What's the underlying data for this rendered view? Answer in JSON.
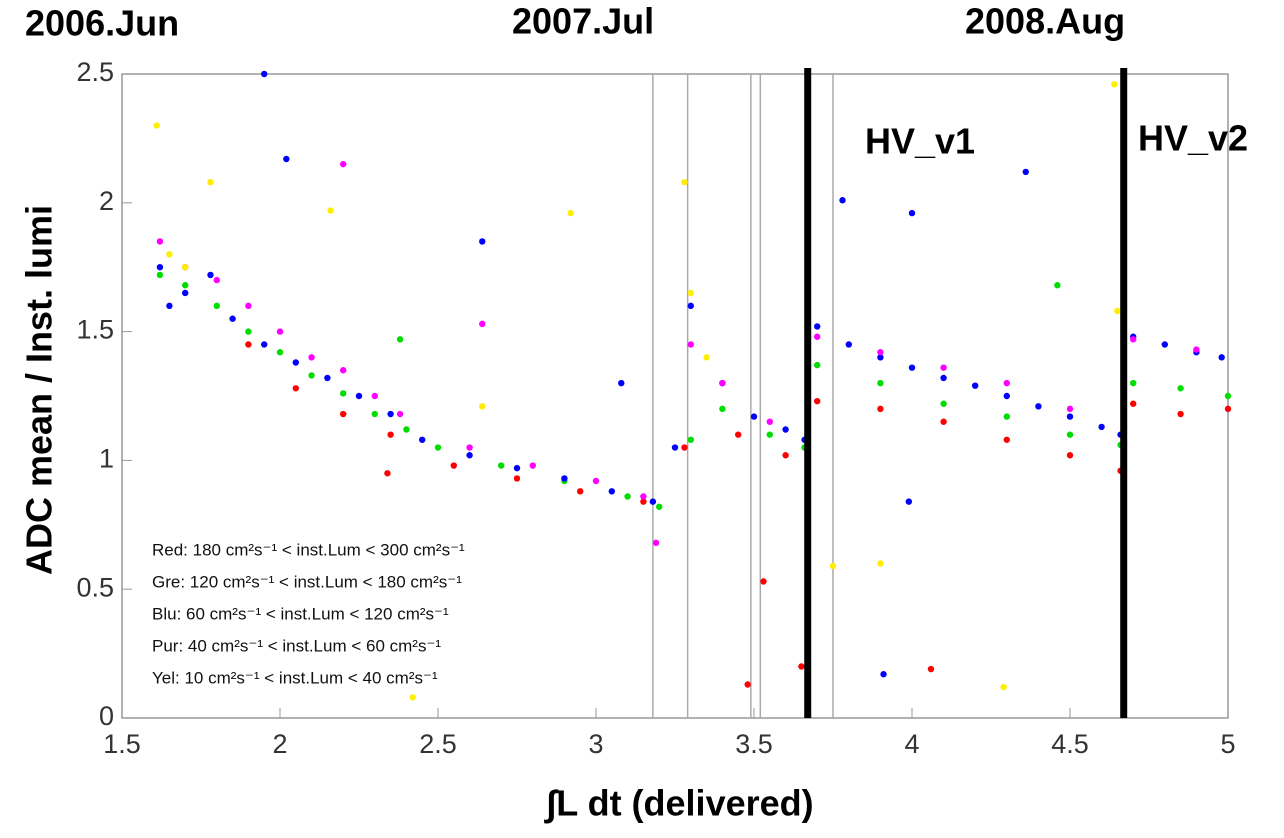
{
  "chart_data": {
    "type": "scatter",
    "x_label": "∫L dt  (delivered)",
    "y_label": "ADC mean / Inst. lumi",
    "annotations": [
      "2006.Jun",
      "2007.Jul",
      "2008.Aug",
      "HV_v1",
      "HV_v2"
    ],
    "xlim": [
      1.5,
      5
    ],
    "ylim": [
      0,
      2.5
    ],
    "xticks": [
      1.5,
      2,
      2.5,
      3,
      3.5,
      4,
      4.5,
      5
    ],
    "yticks": [
      0,
      0.5,
      1,
      1.5,
      2,
      2.5
    ],
    "vlines": [
      3.18,
      3.29,
      3.49,
      3.52,
      3.75
    ],
    "thick_vlines": [
      3.67,
      4.67
    ],
    "series": [
      {
        "name": "Red:  180 cm²s⁻¹ <  inst.Lum < 300 cm²s⁻¹",
        "color": "#ff0000",
        "x": [
          1.9,
          2.05,
          2.2,
          2.35,
          2.55,
          2.75,
          2.95,
          3.15,
          3.28,
          3.45,
          3.6,
          3.7,
          3.9,
          4.1,
          4.3,
          4.5,
          4.66,
          4.7,
          4.85,
          5.0,
          3.48,
          3.53,
          3.65,
          4.06,
          4.67,
          2.34
        ],
        "values": [
          1.45,
          1.28,
          1.18,
          1.1,
          0.98,
          0.93,
          0.88,
          0.84,
          1.05,
          1.1,
          1.02,
          1.23,
          1.2,
          1.15,
          1.08,
          1.02,
          0.96,
          1.22,
          1.18,
          1.2,
          0.13,
          0.53,
          0.2,
          0.19,
          0.15,
          0.95
        ]
      },
      {
        "name": "Gre:  120 cm²s⁻¹ <  inst.Lum < 180 cm²s⁻¹",
        "color": "#00dd00",
        "x": [
          1.62,
          1.7,
          1.8,
          1.9,
          2.0,
          2.1,
          2.2,
          2.3,
          2.4,
          2.5,
          2.7,
          2.9,
          3.1,
          3.2,
          3.3,
          3.4,
          3.55,
          3.66,
          3.7,
          3.9,
          4.1,
          4.3,
          4.5,
          4.66,
          4.7,
          4.85,
          5.0,
          2.38,
          4.46,
          3.67
        ],
        "values": [
          1.72,
          1.68,
          1.6,
          1.5,
          1.42,
          1.33,
          1.26,
          1.18,
          1.12,
          1.05,
          0.98,
          0.92,
          0.86,
          0.82,
          1.08,
          1.2,
          1.1,
          1.05,
          1.37,
          1.3,
          1.22,
          1.17,
          1.1,
          1.06,
          1.3,
          1.28,
          1.25,
          1.47,
          1.68,
          0.13
        ]
      },
      {
        "name": "Blu:   60 cm²s⁻¹ <  inst.Lum < 120 cm²s⁻¹",
        "color": "#0000ff",
        "x": [
          1.62,
          1.65,
          1.7,
          1.78,
          1.85,
          1.95,
          2.05,
          2.15,
          2.25,
          2.35,
          2.45,
          2.6,
          2.75,
          2.9,
          3.05,
          3.18,
          3.25,
          3.3,
          3.4,
          3.5,
          3.6,
          3.66,
          3.7,
          3.8,
          3.9,
          4.0,
          4.1,
          4.2,
          4.3,
          4.4,
          4.5,
          4.6,
          4.66,
          4.7,
          4.8,
          4.9,
          4.98,
          1.95,
          2.02,
          2.64,
          3.08,
          3.78,
          4.0,
          4.36,
          3.91,
          3.99
        ],
        "values": [
          1.75,
          1.6,
          1.65,
          1.72,
          1.55,
          1.45,
          1.38,
          1.32,
          1.25,
          1.18,
          1.08,
          1.02,
          0.97,
          0.93,
          0.88,
          0.84,
          1.05,
          1.6,
          1.3,
          1.17,
          1.12,
          1.08,
          1.52,
          1.45,
          1.4,
          1.36,
          1.32,
          1.29,
          1.25,
          1.21,
          1.17,
          1.13,
          1.1,
          1.48,
          1.45,
          1.42,
          1.4,
          2.5,
          2.17,
          1.85,
          1.3,
          2.01,
          1.96,
          2.12,
          0.17,
          0.84
        ]
      },
      {
        "name": "Pur:   40 cm²s⁻¹ <  inst.Lum <  60 cm²s⁻¹",
        "color": "#ff00ff",
        "x": [
          1.62,
          1.7,
          1.8,
          1.9,
          2.0,
          2.1,
          2.2,
          2.3,
          2.38,
          2.6,
          2.8,
          3.0,
          3.15,
          3.3,
          3.4,
          3.55,
          3.7,
          3.9,
          4.1,
          4.3,
          4.5,
          4.7,
          4.9,
          2.2,
          2.64,
          3.19
        ],
        "values": [
          1.85,
          1.75,
          1.7,
          1.6,
          1.5,
          1.4,
          1.35,
          1.25,
          1.18,
          1.05,
          0.98,
          0.92,
          0.86,
          1.45,
          1.3,
          1.15,
          1.48,
          1.42,
          1.36,
          1.3,
          1.2,
          1.47,
          1.43,
          2.15,
          1.53,
          0.68
        ]
      },
      {
        "name": "Yel:   10 cm²s⁻¹ <  inst.Lum <  40 cm²s⁻¹",
        "color": "#ffee00",
        "x": [
          1.61,
          1.65,
          1.7,
          1.78,
          2.16,
          2.42,
          2.64,
          2.92,
          3.28,
          3.3,
          3.35,
          3.67,
          3.75,
          3.9,
          4.29,
          4.64,
          4.65
        ],
        "values": [
          2.3,
          1.8,
          1.75,
          2.08,
          1.97,
          0.08,
          1.21,
          1.96,
          2.08,
          1.65,
          1.4,
          0.77,
          0.59,
          0.6,
          0.12,
          2.46,
          1.58
        ]
      }
    ]
  }
}
